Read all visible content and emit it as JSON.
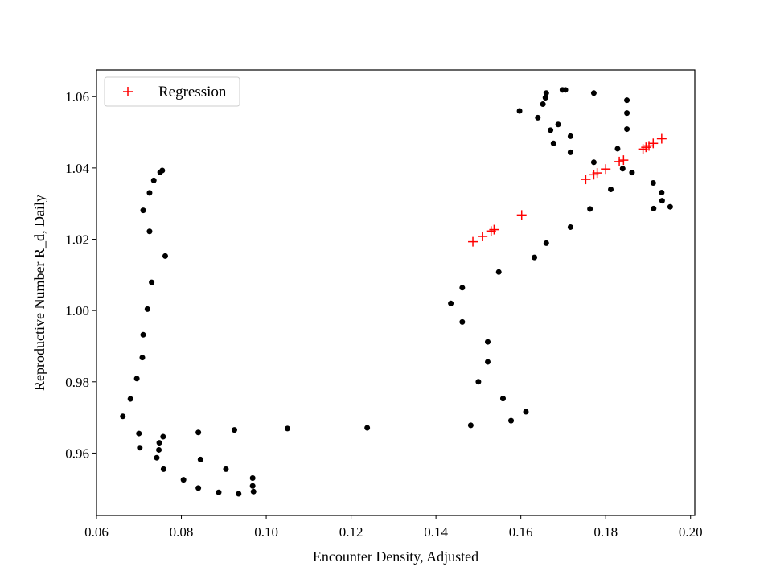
{
  "chart_data": {
    "type": "scatter",
    "title": "",
    "xlabel": "Encounter Density, Adjusted",
    "ylabel": "Reproductive Number R_d, Daily",
    "xlim": [
      0.06,
      0.201
    ],
    "ylim": [
      0.9425,
      1.0675
    ],
    "xticks": [
      0.06,
      0.08,
      0.1,
      0.12,
      0.14,
      0.16,
      0.18,
      0.2
    ],
    "xtick_labels": [
      "0.06",
      "0.08",
      "0.10",
      "0.12",
      "0.14",
      "0.16",
      "0.18",
      "0.20"
    ],
    "yticks": [
      0.96,
      0.98,
      1.0,
      1.02,
      1.04,
      1.06
    ],
    "ytick_labels": [
      "0.96",
      "0.98",
      "1.00",
      "1.02",
      "1.04",
      "1.06"
    ],
    "grid": false,
    "legend_position": "upper-left",
    "series": [
      {
        "name": "",
        "marker": "dot",
        "color": "#000000",
        "points": [
          [
            0.0755,
            1.0393
          ],
          [
            0.075,
            1.0388
          ],
          [
            0.0735,
            1.0365
          ],
          [
            0.0725,
            1.033
          ],
          [
            0.071,
            1.0281
          ],
          [
            0.0725,
            1.0222
          ],
          [
            0.0762,
            1.0153
          ],
          [
            0.073,
            1.0079
          ],
          [
            0.072,
            1.0004
          ],
          [
            0.071,
            0.9932
          ],
          [
            0.0708,
            0.9868
          ],
          [
            0.0695,
            0.9809
          ],
          [
            0.068,
            0.9752
          ],
          [
            0.0662,
            0.9703
          ],
          [
            0.07,
            0.9655
          ],
          [
            0.0757,
            0.9646
          ],
          [
            0.0748,
            0.9629
          ],
          [
            0.0702,
            0.9615
          ],
          [
            0.0747,
            0.9609
          ],
          [
            0.0742,
            0.9587
          ],
          [
            0.0758,
            0.9555
          ],
          [
            0.0805,
            0.9525
          ],
          [
            0.084,
            0.9502
          ],
          [
            0.0888,
            0.949
          ],
          [
            0.0935,
            0.9486
          ],
          [
            0.097,
            0.9492
          ],
          [
            0.0968,
            0.9508
          ],
          [
            0.0968,
            0.953
          ],
          [
            0.0905,
            0.9555
          ],
          [
            0.0845,
            0.9582
          ],
          [
            0.084,
            0.9658
          ],
          [
            0.0925,
            0.9665
          ],
          [
            0.105,
            0.9669
          ],
          [
            0.1238,
            0.9671
          ],
          [
            0.1482,
            0.9678
          ],
          [
            0.1577,
            0.9691
          ],
          [
            0.1612,
            0.9716
          ],
          [
            0.1558,
            0.9753
          ],
          [
            0.15,
            0.98
          ],
          [
            0.1522,
            0.9856
          ],
          [
            0.1522,
            0.9912
          ],
          [
            0.1462,
            0.9968
          ],
          [
            0.1435,
            1.002
          ],
          [
            0.1462,
            1.0064
          ],
          [
            0.1548,
            1.0108
          ],
          [
            0.1632,
            1.0149
          ],
          [
            0.166,
            1.0189
          ],
          [
            0.1717,
            1.0234
          ],
          [
            0.1763,
            1.0285
          ],
          [
            0.1812,
            1.034
          ],
          [
            0.1862,
            1.0387
          ],
          [
            0.1912,
            1.0358
          ],
          [
            0.1932,
            1.0331
          ],
          [
            0.1933,
            1.0308
          ],
          [
            0.1952,
            1.0291
          ],
          [
            0.1913,
            1.0286
          ],
          [
            0.184,
            1.0398
          ],
          [
            0.1828,
            1.0454
          ],
          [
            0.1772,
            1.0416
          ],
          [
            0.1717,
            1.0444
          ],
          [
            0.1717,
            1.0489
          ],
          [
            0.1677,
            1.0469
          ],
          [
            0.167,
            1.0506
          ],
          [
            0.1688,
            1.0522
          ],
          [
            0.164,
            1.0541
          ],
          [
            0.1597,
            1.056
          ],
          [
            0.1652,
            1.0579
          ],
          [
            0.1658,
            1.0597
          ],
          [
            0.166,
            1.061
          ],
          [
            0.1698,
            1.0619
          ],
          [
            0.1705,
            1.0619
          ],
          [
            0.1772,
            1.061
          ],
          [
            0.185,
            1.059
          ],
          [
            0.185,
            1.0554
          ],
          [
            0.185,
            1.0509
          ]
        ]
      },
      {
        "name": "Regression",
        "marker": "plus",
        "color": "#ff0000",
        "points": [
          [
            0.1487,
            1.0193
          ],
          [
            0.151,
            1.0208
          ],
          [
            0.153,
            1.0223
          ],
          [
            0.1537,
            1.0227
          ],
          [
            0.1602,
            1.0268
          ],
          [
            0.1753,
            1.0368
          ],
          [
            0.1772,
            1.0381
          ],
          [
            0.178,
            1.0386
          ],
          [
            0.18,
            1.0397
          ],
          [
            0.1832,
            1.0418
          ],
          [
            0.1842,
            1.0422
          ],
          [
            0.1888,
            1.0453
          ],
          [
            0.1895,
            1.0458
          ],
          [
            0.1902,
            1.0462
          ],
          [
            0.1912,
            1.0469
          ],
          [
            0.1932,
            1.0482
          ]
        ]
      }
    ]
  }
}
